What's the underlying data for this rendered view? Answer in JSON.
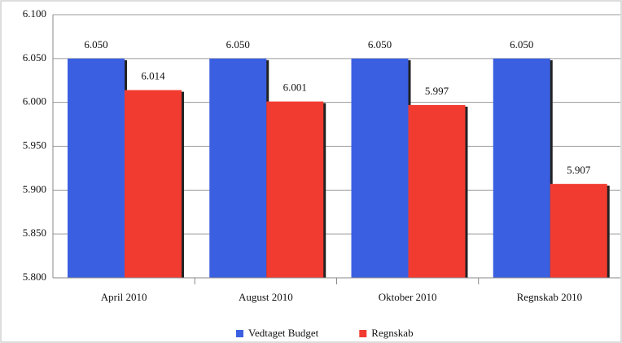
{
  "chart_data": {
    "type": "bar",
    "categories": [
      "April 2010",
      "August 2010",
      "Oktober 2010",
      "Regnskab 2010"
    ],
    "series": [
      {
        "name": "Vedtaget Budget",
        "color": "#3a5fe0",
        "values": [
          6050,
          6050,
          6050,
          6050
        ],
        "value_labels": [
          "6.050",
          "6.050",
          "6.050",
          "6.050"
        ]
      },
      {
        "name": "Regnskab",
        "color": "#f23b30",
        "values": [
          6014,
          6001,
          5997,
          5907
        ],
        "value_labels": [
          "6.014",
          "6.001",
          "5.997",
          "5.907"
        ]
      }
    ],
    "ylim": [
      5800,
      6100
    ],
    "yticks": [
      {
        "value": 5800,
        "label": "5.800"
      },
      {
        "value": 5850,
        "label": "5.850"
      },
      {
        "value": 5900,
        "label": "5.900"
      },
      {
        "value": 5950,
        "label": "5.950"
      },
      {
        "value": 6000,
        "label": "6.000"
      },
      {
        "value": 6050,
        "label": "6.050"
      },
      {
        "value": 6100,
        "label": "6.100"
      }
    ],
    "grid": true,
    "legend": "bottom"
  }
}
